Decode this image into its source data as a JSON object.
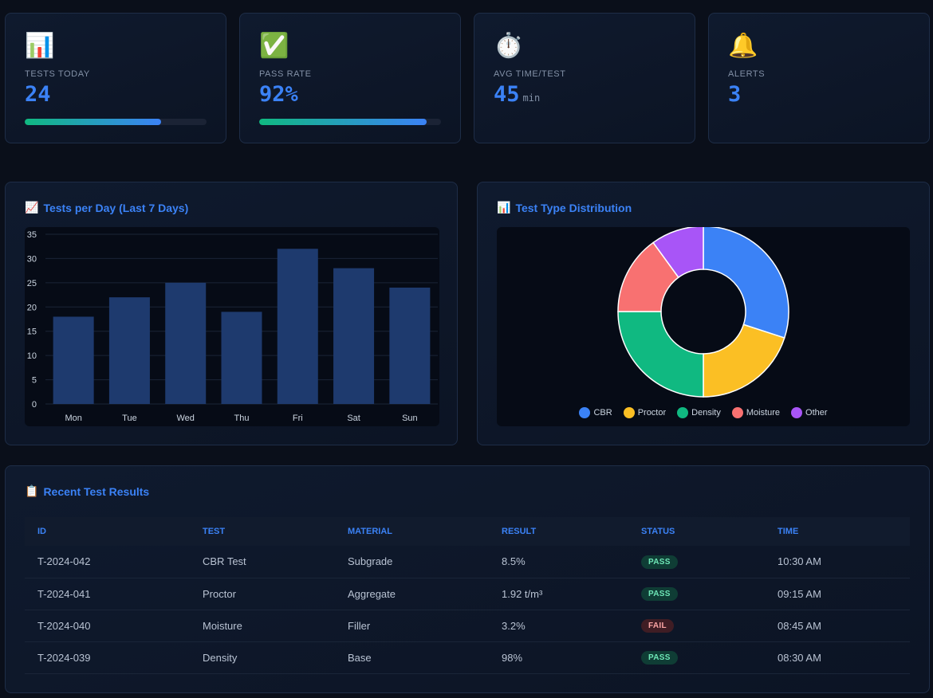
{
  "stats": [
    {
      "icon": "📊",
      "icon_name": "bar-chart-icon",
      "label": "TESTS TODAY",
      "value": "24",
      "unit": "",
      "progress": 0.75
    },
    {
      "icon": "✅",
      "icon_name": "check-mark-icon",
      "label": "PASS RATE",
      "value": "92%",
      "unit": "",
      "progress": 0.92
    },
    {
      "icon": "⏱️",
      "icon_name": "stopwatch-icon",
      "label": "AVG TIME/TEST",
      "value": "45",
      "unit": "min",
      "progress": null
    },
    {
      "icon": "🔔",
      "icon_name": "bell-icon",
      "label": "ALERTS",
      "value": "3",
      "unit": "",
      "progress": null
    }
  ],
  "bar_panel": {
    "icon": "📈",
    "title": "Tests per Day (Last 7 Days)"
  },
  "pie_panel": {
    "icon": "📊",
    "title": "Test Type Distribution"
  },
  "table_panel": {
    "icon": "📋",
    "title": "Recent Test Results"
  },
  "chart_data": [
    {
      "type": "bar",
      "categories": [
        "Mon",
        "Tue",
        "Wed",
        "Thu",
        "Fri",
        "Sat",
        "Sun"
      ],
      "values": [
        18,
        22,
        25,
        19,
        32,
        28,
        24
      ],
      "ylim": [
        0,
        35
      ],
      "yticks": [
        0,
        5,
        10,
        15,
        20,
        25,
        30,
        35
      ],
      "grid": true,
      "bar_color": "#1e3a6e"
    },
    {
      "type": "pie",
      "donut": true,
      "labels": [
        "CBR",
        "Proctor",
        "Density",
        "Moisture",
        "Other"
      ],
      "values": [
        30,
        20,
        25,
        15,
        10
      ],
      "colors": [
        "#3b82f6",
        "#fbbf24",
        "#10b981",
        "#f87171",
        "#a855f7"
      ],
      "legend": "bottom"
    }
  ],
  "table": {
    "headers": [
      "ID",
      "TEST",
      "MATERIAL",
      "RESULT",
      "STATUS",
      "TIME"
    ],
    "rows": [
      {
        "id": "T-2024-042",
        "test": "CBR Test",
        "material": "Subgrade",
        "result": "8.5%",
        "status": "PASS",
        "time": "10:30 AM"
      },
      {
        "id": "T-2024-041",
        "test": "Proctor",
        "material": "Aggregate",
        "result": "1.92 t/m³",
        "status": "PASS",
        "time": "09:15 AM"
      },
      {
        "id": "T-2024-040",
        "test": "Moisture",
        "material": "Filler",
        "result": "3.2%",
        "status": "FAIL",
        "time": "08:45 AM"
      },
      {
        "id": "T-2024-039",
        "test": "Density",
        "material": "Base",
        "result": "98%",
        "status": "PASS",
        "time": "08:30 AM"
      }
    ]
  }
}
